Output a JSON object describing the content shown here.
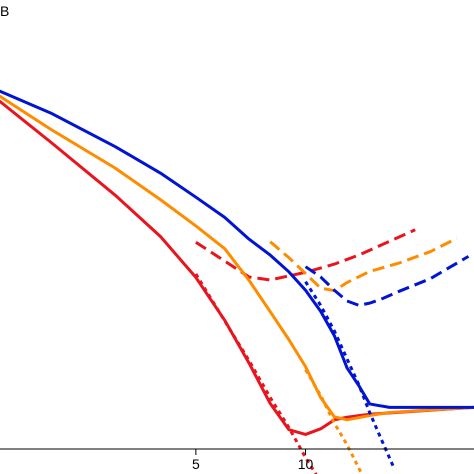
{
  "chart_data": {
    "type": "line",
    "title": "",
    "ylabel": "B",
    "xlabel": "",
    "x_scale": "log",
    "xlim": [
      1.45,
      29
    ],
    "ylim": [
      0,
      1
    ],
    "grid": false,
    "x_ticks": [
      {
        "value": 5,
        "label": "5"
      },
      {
        "value": 10,
        "label": "10"
      }
    ],
    "series": [
      {
        "color": "#e8141e",
        "style": "solid",
        "x": [
          1.45,
          2,
          3,
          4,
          5,
          6,
          7,
          8,
          9,
          10,
          11,
          12,
          13,
          15,
          20,
          29
        ],
        "y": [
          0.81,
          0.715,
          0.592,
          0.495,
          0.4,
          0.3,
          0.2,
          0.106,
          0.045,
          0.034,
          0.047,
          0.068,
          0.074,
          0.081,
          0.088,
          0.097
        ]
      },
      {
        "color": "#e8141e",
        "style": "dotted",
        "x": [
          5,
          7,
          8,
          9,
          10,
          10.7
        ],
        "y": [
          0.408,
          0.206,
          0.12,
          0.05,
          -0.02,
          -0.06
        ]
      },
      {
        "color": "#e8141e",
        "style": "dashed",
        "x": [
          5,
          6,
          7,
          8,
          10,
          12,
          14,
          16,
          20
        ],
        "y": [
          0.482,
          0.438,
          0.401,
          0.394,
          0.412,
          0.431,
          0.452,
          0.474,
          0.511
        ]
      },
      {
        "color": "#ff8c00",
        "style": "solid",
        "x": [
          1.45,
          2,
          3,
          4,
          5,
          6,
          7,
          8,
          9,
          10,
          11,
          12,
          13,
          15,
          17,
          20,
          29
        ],
        "y": [
          0.822,
          0.745,
          0.655,
          0.581,
          0.52,
          0.467,
          0.393,
          0.32,
          0.255,
          0.192,
          0.12,
          0.075,
          0.068,
          0.078,
          0.085,
          0.089,
          0.097
        ]
      },
      {
        "color": "#ff8c00",
        "style": "dotted",
        "x": [
          10,
          11,
          12,
          13,
          14.3
        ],
        "y": [
          0.185,
          0.125,
          0.06,
          0.01,
          -0.06
        ]
      },
      {
        "color": "#ff8c00",
        "style": "dashed",
        "x": [
          8,
          9,
          10,
          11,
          12,
          13,
          15,
          18,
          22,
          26
        ],
        "y": [
          0.483,
          0.446,
          0.409,
          0.375,
          0.369,
          0.388,
          0.414,
          0.433,
          0.46,
          0.491
        ]
      },
      {
        "color": "#0014d2",
        "style": "solid",
        "x": [
          1.45,
          2,
          3,
          4,
          5,
          6,
          7,
          8,
          9,
          10,
          11,
          12,
          13,
          14,
          15,
          17,
          20,
          29
        ],
        "y": [
          0.834,
          0.783,
          0.705,
          0.643,
          0.587,
          0.54,
          0.489,
          0.452,
          0.413,
          0.37,
          0.321,
          0.264,
          0.189,
          0.148,
          0.105,
          0.097,
          0.097,
          0.097
        ]
      },
      {
        "color": "#0014d2",
        "style": "dotted",
        "x": [
          10,
          11,
          12,
          13,
          14,
          15,
          16,
          17.4
        ],
        "y": [
          0.39,
          0.335,
          0.275,
          0.21,
          0.15,
          0.085,
          0.03,
          -0.04
        ]
      },
      {
        "color": "#0014d2",
        "style": "dashed",
        "x": [
          10,
          11,
          12,
          13,
          14,
          15,
          16,
          18,
          22,
          28
        ],
        "y": [
          0.425,
          0.401,
          0.37,
          0.345,
          0.335,
          0.34,
          0.348,
          0.367,
          0.397,
          0.449
        ]
      }
    ]
  }
}
